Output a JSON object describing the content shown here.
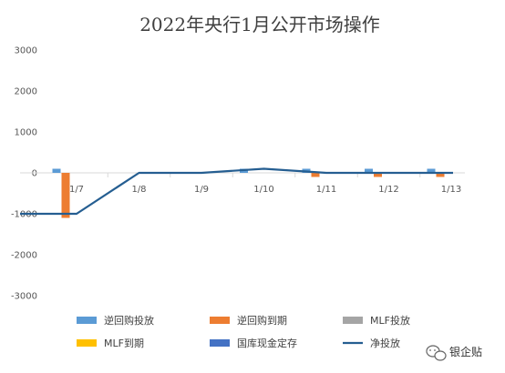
{
  "chart_data": {
    "type": "bar",
    "title": "2022年央行1月公开市场操作",
    "categories": [
      "1/7",
      "1/8",
      "1/9",
      "1/10",
      "1/11",
      "1/12",
      "1/13"
    ],
    "ylim": [
      -3000,
      3000
    ],
    "yticks": [
      3000,
      2000,
      1000,
      0,
      -1000,
      -2000,
      -3000
    ],
    "grid": false,
    "legend_position": "bottom",
    "series": [
      {
        "name": "逆回购投放",
        "type": "bar",
        "color": "#5B9BD5",
        "values": [
          100,
          0,
          0,
          100,
          100,
          100,
          100
        ]
      },
      {
        "name": "逆回购到期",
        "type": "bar",
        "color": "#ED7D31",
        "values": [
          -1100,
          0,
          0,
          0,
          -100,
          -100,
          -100
        ]
      },
      {
        "name": "MLF投放",
        "type": "bar",
        "color": "#A5A5A5",
        "values": [
          0,
          0,
          0,
          0,
          0,
          0,
          0
        ]
      },
      {
        "name": "MLF到期",
        "type": "bar",
        "color": "#FFC000",
        "values": [
          0,
          0,
          0,
          0,
          0,
          0,
          0
        ]
      },
      {
        "name": "国库现金定存",
        "type": "bar",
        "color": "#4472C4",
        "values": [
          0,
          0,
          0,
          0,
          0,
          0,
          0
        ]
      },
      {
        "name": "净投放",
        "type": "line",
        "color": "#255E91",
        "values": [
          -1000,
          0,
          0,
          100,
          0,
          0,
          0
        ]
      }
    ]
  },
  "watermark": {
    "icon": "wechat-icon",
    "text": "银企贴"
  }
}
